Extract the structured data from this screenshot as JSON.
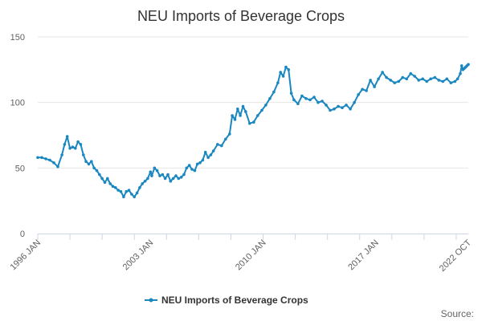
{
  "chart_data": {
    "type": "line",
    "title": "NEU Imports of Beverage Crops",
    "source_label": "Source:",
    "xlabel": "",
    "ylabel": "",
    "ylim": [
      0,
      150
    ],
    "yticks": [
      0,
      50,
      100,
      150
    ],
    "x_range": [
      "1996-01",
      "2022-10"
    ],
    "xtick_labels": [
      {
        "label": "1996 JAN",
        "date": "1996-01"
      },
      {
        "label": "2003 JAN",
        "date": "2003-01"
      },
      {
        "label": "2010 JAN",
        "date": "2010-01"
      },
      {
        "label": "2017 JAN",
        "date": "2017-01"
      },
      {
        "label": "2022 OCT",
        "date": "2022-10"
      }
    ],
    "xtick_marks": [
      "1996-01",
      "1998-01",
      "2000-01",
      "2002-01",
      "2004-01",
      "2006-01",
      "2008-01",
      "2010-01",
      "2012-01",
      "2014-01",
      "2016-01",
      "2018-01",
      "2020-01",
      "2022-01"
    ],
    "grid": true,
    "legend_position": "bottom-center",
    "color": "#1a87c0",
    "series": [
      {
        "name": "NEU Imports of Beverage Crops",
        "points": [
          [
            "1996-01",
            58
          ],
          [
            "1996-04",
            58
          ],
          [
            "1996-07",
            57
          ],
          [
            "1996-10",
            56
          ],
          [
            "1997-01",
            54
          ],
          [
            "1997-04",
            51
          ],
          [
            "1997-07",
            60
          ],
          [
            "1997-09",
            68
          ],
          [
            "1997-11",
            74
          ],
          [
            "1998-01",
            65
          ],
          [
            "1998-03",
            66
          ],
          [
            "1998-05",
            65
          ],
          [
            "1998-07",
            70
          ],
          [
            "1998-09",
            68
          ],
          [
            "1998-11",
            60
          ],
          [
            "1999-01",
            55
          ],
          [
            "1999-03",
            53
          ],
          [
            "1999-05",
            55
          ],
          [
            "1999-07",
            50
          ],
          [
            "1999-09",
            48
          ],
          [
            "1999-11",
            45
          ],
          [
            "2000-01",
            42
          ],
          [
            "2000-03",
            39
          ],
          [
            "2000-05",
            42
          ],
          [
            "2000-07",
            38
          ],
          [
            "2000-09",
            36
          ],
          [
            "2000-11",
            35
          ],
          [
            "2001-01",
            33
          ],
          [
            "2001-03",
            32
          ],
          [
            "2001-05",
            28
          ],
          [
            "2001-07",
            32
          ],
          [
            "2001-09",
            33
          ],
          [
            "2001-11",
            30
          ],
          [
            "2002-01",
            28
          ],
          [
            "2002-03",
            31
          ],
          [
            "2002-05",
            35
          ],
          [
            "2002-07",
            38
          ],
          [
            "2002-09",
            40
          ],
          [
            "2002-11",
            42
          ],
          [
            "2003-01",
            47
          ],
          [
            "2003-02",
            44
          ],
          [
            "2003-04",
            50
          ],
          [
            "2003-06",
            48
          ],
          [
            "2003-08",
            44
          ],
          [
            "2003-10",
            45
          ],
          [
            "2003-12",
            42
          ],
          [
            "2004-02",
            45
          ],
          [
            "2004-04",
            40
          ],
          [
            "2004-06",
            42
          ],
          [
            "2004-08",
            44
          ],
          [
            "2004-10",
            42
          ],
          [
            "2004-12",
            43
          ],
          [
            "2005-02",
            45
          ],
          [
            "2005-04",
            50
          ],
          [
            "2005-06",
            52
          ],
          [
            "2005-08",
            49
          ],
          [
            "2005-10",
            48
          ],
          [
            "2005-12",
            53
          ],
          [
            "2006-02",
            54
          ],
          [
            "2006-04",
            56
          ],
          [
            "2006-06",
            62
          ],
          [
            "2006-08",
            58
          ],
          [
            "2006-10",
            60
          ],
          [
            "2006-12",
            63
          ],
          [
            "2007-03",
            68
          ],
          [
            "2007-06",
            67
          ],
          [
            "2007-09",
            72
          ],
          [
            "2007-12",
            76
          ],
          [
            "2008-02",
            90
          ],
          [
            "2008-04",
            87
          ],
          [
            "2008-06",
            95
          ],
          [
            "2008-08",
            90
          ],
          [
            "2008-10",
            97
          ],
          [
            "2008-12",
            93
          ],
          [
            "2009-03",
            84
          ],
          [
            "2009-06",
            85
          ],
          [
            "2009-09",
            90
          ],
          [
            "2009-12",
            94
          ],
          [
            "2010-03",
            98
          ],
          [
            "2010-06",
            103
          ],
          [
            "2010-09",
            108
          ],
          [
            "2010-12",
            115
          ],
          [
            "2011-02",
            123
          ],
          [
            "2011-04",
            120
          ],
          [
            "2011-06",
            127
          ],
          [
            "2011-08",
            125
          ],
          [
            "2011-10",
            107
          ],
          [
            "2011-12",
            102
          ],
          [
            "2012-03",
            99
          ],
          [
            "2012-06",
            105
          ],
          [
            "2012-09",
            103
          ],
          [
            "2012-12",
            102
          ],
          [
            "2013-03",
            104
          ],
          [
            "2013-06",
            100
          ],
          [
            "2013-09",
            101
          ],
          [
            "2013-12",
            98
          ],
          [
            "2014-03",
            94
          ],
          [
            "2014-06",
            95
          ],
          [
            "2014-09",
            97
          ],
          [
            "2014-12",
            96
          ],
          [
            "2015-03",
            98
          ],
          [
            "2015-06",
            95
          ],
          [
            "2015-09",
            100
          ],
          [
            "2015-12",
            106
          ],
          [
            "2016-03",
            110
          ],
          [
            "2016-06",
            109
          ],
          [
            "2016-09",
            117
          ],
          [
            "2016-12",
            112
          ],
          [
            "2017-03",
            118
          ],
          [
            "2017-06",
            123
          ],
          [
            "2017-09",
            119
          ],
          [
            "2017-12",
            117
          ],
          [
            "2018-03",
            115
          ],
          [
            "2018-06",
            116
          ],
          [
            "2018-09",
            119
          ],
          [
            "2018-12",
            118
          ],
          [
            "2019-03",
            122
          ],
          [
            "2019-06",
            120
          ],
          [
            "2019-09",
            117
          ],
          [
            "2019-12",
            118
          ],
          [
            "2020-03",
            116
          ],
          [
            "2020-06",
            118
          ],
          [
            "2020-09",
            119
          ],
          [
            "2020-12",
            117
          ],
          [
            "2021-03",
            116
          ],
          [
            "2021-06",
            118
          ],
          [
            "2021-09",
            115
          ],
          [
            "2021-12",
            116
          ],
          [
            "2022-02",
            118
          ],
          [
            "2022-04",
            122
          ],
          [
            "2022-05",
            128
          ],
          [
            "2022-06",
            125
          ],
          [
            "2022-07",
            126
          ],
          [
            "2022-08",
            127
          ],
          [
            "2022-09",
            128
          ],
          [
            "2022-10",
            129
          ]
        ]
      }
    ]
  }
}
